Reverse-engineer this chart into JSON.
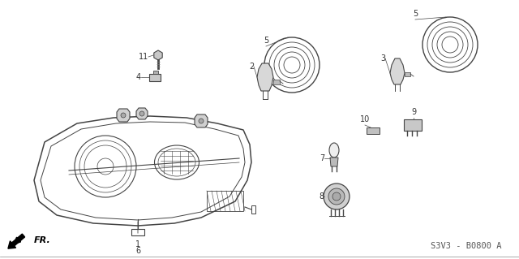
{
  "part_number": "S3V3 - B0800 A",
  "background_color": "#ffffff",
  "line_color": "#444444",
  "text_color": "#333333",
  "figsize": [
    6.4,
    3.19
  ],
  "dpi": 100
}
